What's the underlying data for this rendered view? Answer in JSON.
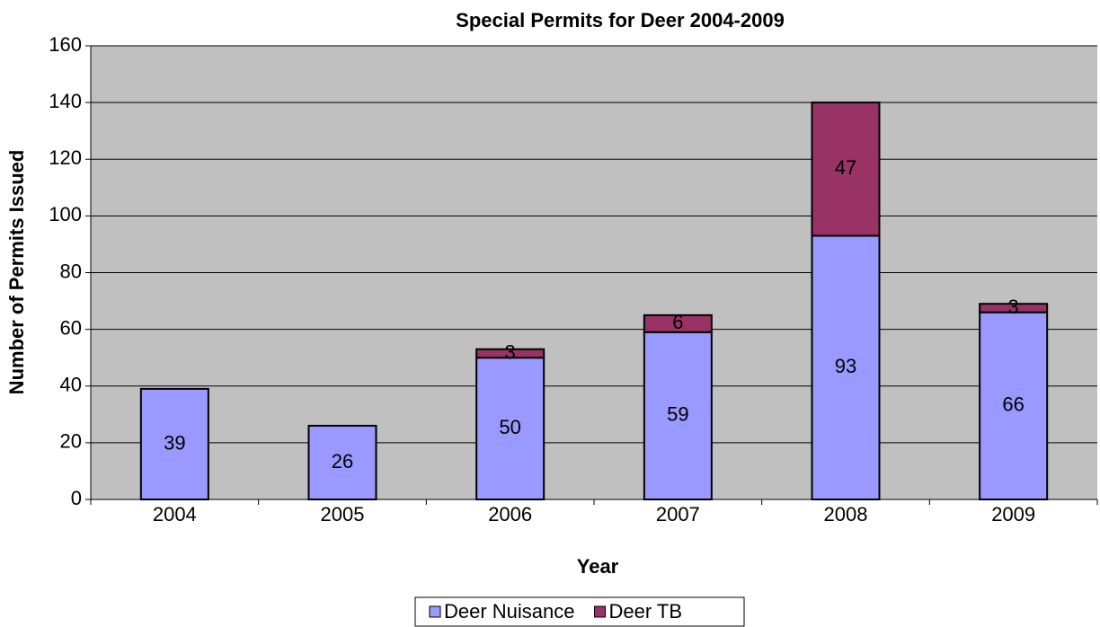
{
  "chart_data": {
    "type": "stacked_bar",
    "title": "Special Permits for Deer 2004-2009",
    "x_label": "Year",
    "y_label": "Number of Permits Issued",
    "categories": [
      "2004",
      "2005",
      "2006",
      "2007",
      "2008",
      "2009"
    ],
    "series": [
      {
        "name": "Deer Nuisance",
        "color": "#9999ff",
        "values": [
          39,
          26,
          50,
          59,
          93,
          66
        ]
      },
      {
        "name": "Deer TB",
        "color": "#993366",
        "values": [
          null,
          null,
          3,
          6,
          47,
          3
        ]
      }
    ],
    "ylim": [
      0,
      160
    ],
    "yticks": [
      0,
      20,
      40,
      60,
      80,
      100,
      120,
      140,
      160
    ],
    "grid": true,
    "legend": "bottom"
  }
}
